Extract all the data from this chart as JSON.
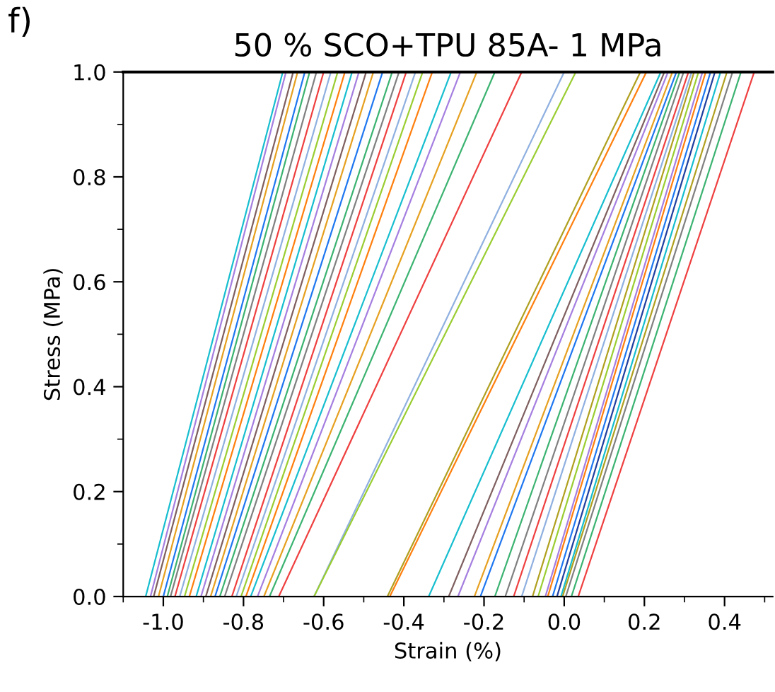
{
  "chart_data": {
    "type": "line",
    "title": "50 % SCO+TPU 85A- 1 MPa",
    "xlabel": "Strain (%)",
    "ylabel": "Stress (MPa)",
    "annotations": [
      "f)"
    ],
    "xlim": [
      -1.1,
      0.52
    ],
    "ylim": [
      0,
      1
    ],
    "xticks": [
      {
        "value": -1,
        "label": "-1.0"
      },
      -0.8,
      -0.6,
      -0.4,
      -0.2,
      {
        "value": 0,
        "label": "0.0"
      },
      0.2,
      0.4
    ],
    "yticks": [
      {
        "value": 0,
        "label": "0.0"
      },
      0.2,
      0.4,
      0.6,
      0.8,
      {
        "value": 1,
        "label": "1.0"
      }
    ],
    "grid": false,
    "legend": false,
    "marker": "none",
    "line_style": "solid",
    "series": [
      {
        "color": "#17becf",
        "x": [
          -1.044,
          -0.702
        ],
        "values": [
          0,
          1
        ]
      },
      {
        "color": "#a57fe0",
        "x": [
          -1.032,
          -0.694
        ],
        "values": [
          0,
          1
        ]
      },
      {
        "color": "#7f5f5f",
        "x": [
          -1.024,
          -0.676
        ],
        "values": [
          0,
          1
        ]
      },
      {
        "color": "#e6a020",
        "x": [
          -1.012,
          -0.665
        ],
        "values": [
          0,
          1
        ]
      },
      {
        "color": "#1f77f0",
        "x": [
          -1.0,
          -0.647
        ],
        "values": [
          0,
          1
        ]
      },
      {
        "color": "#3cb371",
        "x": [
          -0.99,
          -0.635
        ],
        "values": [
          0,
          1
        ]
      },
      {
        "color": "#808080",
        "x": [
          -0.982,
          -0.618
        ],
        "values": [
          0,
          1
        ]
      },
      {
        "color": "#ef4040",
        "x": [
          -0.971,
          -0.6
        ],
        "values": [
          0,
          1
        ]
      },
      {
        "color": "#8fb0e0",
        "x": [
          -0.959,
          -0.582
        ],
        "values": [
          0,
          1
        ]
      },
      {
        "color": "#9acd32",
        "x": [
          -0.947,
          -0.565
        ],
        "values": [
          0,
          1
        ]
      },
      {
        "color": "#ff7f0e",
        "x": [
          -0.935,
          -0.547
        ],
        "values": [
          0,
          1
        ]
      },
      {
        "color": "#17becf",
        "x": [
          -0.918,
          -0.529
        ],
        "values": [
          0,
          1
        ]
      },
      {
        "color": "#a57fe0",
        "x": [
          -0.906,
          -0.512
        ],
        "values": [
          0,
          1
        ]
      },
      {
        "color": "#7f5f5f",
        "x": [
          -0.894,
          -0.494
        ],
        "values": [
          0,
          1
        ]
      },
      {
        "color": "#e6a020",
        "x": [
          -0.882,
          -0.476
        ],
        "values": [
          0,
          1
        ]
      },
      {
        "color": "#1f77f0",
        "x": [
          -0.871,
          -0.453
        ],
        "values": [
          0,
          1
        ]
      },
      {
        "color": "#3cb371",
        "x": [
          -0.859,
          -0.429
        ],
        "values": [
          0,
          1
        ]
      },
      {
        "color": "#808080",
        "x": [
          -0.847,
          -0.412
        ],
        "values": [
          0,
          1
        ]
      },
      {
        "color": "#ef4040",
        "x": [
          -0.829,
          -0.394
        ],
        "values": [
          0,
          1
        ]
      },
      {
        "color": "#8fb0e0",
        "x": [
          -0.818,
          -0.371
        ],
        "values": [
          0,
          1
        ]
      },
      {
        "color": "#9acd32",
        "x": [
          -0.806,
          -0.353
        ],
        "values": [
          0,
          1
        ]
      },
      {
        "color": "#ff7f0e",
        "x": [
          -0.794,
          -0.329
        ],
        "values": [
          0,
          1
        ]
      },
      {
        "color": "#17becf",
        "x": [
          -0.782,
          -0.282
        ],
        "values": [
          0,
          1
        ]
      },
      {
        "color": "#a57fe0",
        "x": [
          -0.765,
          -0.259
        ],
        "values": [
          0,
          1
        ]
      },
      {
        "color": "#e6a020",
        "x": [
          -0.749,
          -0.218
        ],
        "values": [
          0,
          1
        ]
      },
      {
        "color": "#3cb371",
        "x": [
          -0.735,
          -0.173
        ],
        "values": [
          0,
          1
        ]
      },
      {
        "color": "#ef4040",
        "x": [
          -0.712,
          -0.106
        ],
        "values": [
          0,
          1
        ]
      },
      {
        "color": "#8fb0e0",
        "x": [
          -0.624,
          0.0
        ],
        "values": [
          0,
          1
        ]
      },
      {
        "color": "#9acd32",
        "x": [
          -0.624,
          0.029
        ],
        "values": [
          0,
          1
        ]
      },
      {
        "color": "#b0a020",
        "x": [
          -0.441,
          0.19
        ],
        "values": [
          0,
          1
        ]
      },
      {
        "color": "#ff7f0e",
        "x": [
          -0.435,
          0.205
        ],
        "values": [
          0,
          1
        ]
      },
      {
        "color": "#17becf",
        "x": [
          -0.338,
          0.241
        ],
        "values": [
          0,
          1
        ]
      },
      {
        "color": "#7f5f5f",
        "x": [
          -0.288,
          0.25
        ],
        "values": [
          0,
          1
        ]
      },
      {
        "color": "#a57fe0",
        "x": [
          -0.265,
          0.259
        ],
        "values": [
          0,
          1
        ]
      },
      {
        "color": "#e6a020",
        "x": [
          -0.224,
          0.27
        ],
        "values": [
          0,
          1
        ]
      },
      {
        "color": "#1f77f0",
        "x": [
          -0.209,
          0.28
        ],
        "values": [
          0,
          1
        ]
      },
      {
        "color": "#3cb371",
        "x": [
          -0.173,
          0.288
        ],
        "values": [
          0,
          1
        ]
      },
      {
        "color": "#808080",
        "x": [
          -0.147,
          0.298
        ],
        "values": [
          0,
          1
        ]
      },
      {
        "color": "#ef4040",
        "x": [
          -0.126,
          0.31
        ],
        "values": [
          0,
          1
        ]
      },
      {
        "color": "#8fb0e0",
        "x": [
          -0.106,
          0.318
        ],
        "values": [
          0,
          1
        ]
      },
      {
        "color": "#b0a020",
        "x": [
          -0.079,
          0.324
        ],
        "values": [
          0,
          1
        ]
      },
      {
        "color": "#9acd32",
        "x": [
          -0.065,
          0.335
        ],
        "values": [
          0,
          1
        ]
      },
      {
        "color": "#a57fe0",
        "x": [
          -0.047,
          0.345
        ],
        "values": [
          0,
          1
        ]
      },
      {
        "color": "#ff7f0e",
        "x": [
          -0.041,
          0.353
        ],
        "values": [
          0,
          1
        ]
      },
      {
        "color": "#1f77f0",
        "x": [
          -0.029,
          0.365
        ],
        "values": [
          0,
          1
        ]
      },
      {
        "color": "#2040a0",
        "x": [
          -0.018,
          0.376
        ],
        "values": [
          0,
          1
        ]
      },
      {
        "color": "#17becf",
        "x": [
          -0.008,
          0.39
        ],
        "values": [
          0,
          1
        ]
      },
      {
        "color": "#b0a020",
        "x": [
          -0.004,
          0.406
        ],
        "values": [
          0,
          1
        ]
      },
      {
        "color": "#808080",
        "x": [
          0.004,
          0.42
        ],
        "values": [
          0,
          1
        ]
      },
      {
        "color": "#3cb371",
        "x": [
          0.018,
          0.441
        ],
        "values": [
          0,
          1
        ]
      },
      {
        "color": "#ef4040",
        "x": [
          0.035,
          0.474
        ],
        "values": [
          0,
          1
        ]
      }
    ]
  }
}
